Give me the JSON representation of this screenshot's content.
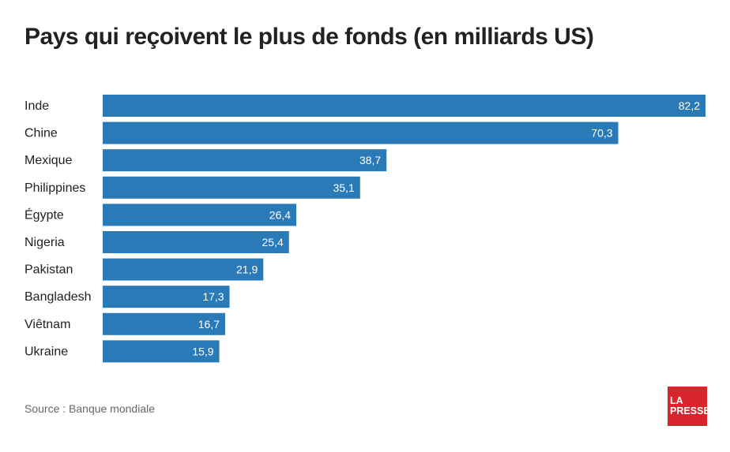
{
  "title": "Pays qui reçoivent le plus de fonds (en milliards US)",
  "source": "Source : Banque mondiale",
  "logo": {
    "line1": "LA",
    "line2": "PRESSE"
  },
  "colors": {
    "bar": "#2a7ab8",
    "logo": "#d9232d"
  },
  "chart_data": {
    "type": "bar",
    "orientation": "horizontal",
    "title": "Pays qui reçoivent le plus de fonds (en milliards US)",
    "categories": [
      "Inde",
      "Chine",
      "Mexique",
      "Philippines",
      "Égypte",
      "Nigeria",
      "Pakistan",
      "Bangladesh",
      "Viêtnam",
      "Ukraine"
    ],
    "values": [
      82.2,
      70.3,
      38.7,
      35.1,
      26.4,
      25.4,
      21.9,
      17.3,
      16.7,
      15.9
    ],
    "value_labels": [
      "82,2",
      "70,3",
      "38,7",
      "35,1",
      "26,4",
      "25,4",
      "21,9",
      "17,3",
      "16,7",
      "15,9"
    ],
    "xlim": [
      0,
      82.2
    ],
    "grid": false
  }
}
